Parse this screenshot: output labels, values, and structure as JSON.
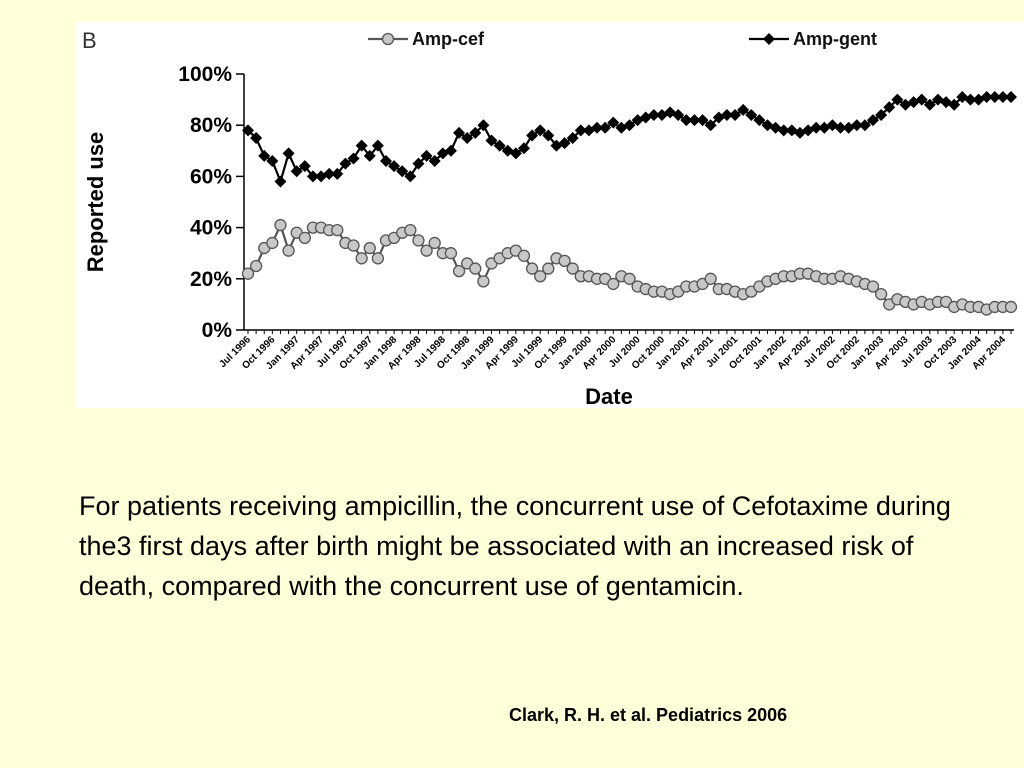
{
  "chart_data": {
    "type": "line",
    "panel_label": "B",
    "xlabel": "Date",
    "ylabel": "Reported use",
    "ylim": [
      0,
      100
    ],
    "yticks": [
      "0%",
      "20%",
      "40%",
      "60%",
      "80%",
      "100%"
    ],
    "ytick_values": [
      0,
      20,
      40,
      60,
      80,
      100
    ],
    "xtick_labels": [
      "Jul 1996",
      "Oct 1996",
      "Jan 1997",
      "Apr 1997",
      "Jul 1997",
      "Oct 1997",
      "Jan 1998",
      "Apr 1998",
      "Jul 1998",
      "Oct 1998",
      "Jan 1999",
      "Apr 1999",
      "Jul 1999",
      "Oct 1999",
      "Jan 2000",
      "Apr 2000",
      "Jul 2000",
      "Oct 2000",
      "Jan 2001",
      "Apr 2001",
      "Jul 2001",
      "Oct 2001",
      "Jan 2002",
      "Apr 2002",
      "Jul 2002",
      "Oct 2002",
      "Jan 2003",
      "Apr 2003",
      "Jul 2003",
      "Oct 2003",
      "Jan 2004",
      "Apr 2004"
    ],
    "x_start": "Jul 1996",
    "x_frequency": "monthly",
    "grid": false,
    "legend_position": "top",
    "series": [
      {
        "name": "Amp-cef",
        "color": "#555555",
        "marker": "circle",
        "marker_fill": "#c8c8c8",
        "values": [
          22,
          25,
          32,
          34,
          41,
          31,
          38,
          36,
          40,
          40,
          39,
          39,
          34,
          33,
          28,
          32,
          28,
          35,
          36,
          38,
          39,
          35,
          31,
          34,
          30,
          30,
          23,
          26,
          24,
          19,
          26,
          28,
          30,
          31,
          29,
          24,
          21,
          24,
          28,
          27,
          24,
          21,
          21,
          20,
          20,
          18,
          21,
          20,
          17,
          16,
          15,
          15,
          14,
          15,
          17,
          17,
          18,
          20,
          16,
          16,
          15,
          14,
          15,
          17,
          19,
          20,
          21,
          21,
          22,
          22,
          21,
          20,
          20,
          21,
          20,
          19,
          18,
          17,
          14,
          10,
          12,
          11,
          10,
          11,
          10,
          11,
          11,
          9,
          10,
          9,
          9,
          8,
          9,
          9,
          9
        ]
      },
      {
        "name": "Amp-gent",
        "color": "#000000",
        "marker": "diamond",
        "marker_fill": "#000000",
        "values": [
          78,
          75,
          68,
          66,
          58,
          69,
          62,
          64,
          60,
          60,
          61,
          61,
          65,
          67,
          72,
          68,
          72,
          66,
          64,
          62,
          60,
          65,
          68,
          66,
          69,
          70,
          77,
          75,
          77,
          80,
          74,
          72,
          70,
          69,
          71,
          76,
          78,
          76,
          72,
          73,
          75,
          78,
          78,
          79,
          79,
          81,
          79,
          80,
          82,
          83,
          84,
          84,
          85,
          84,
          82,
          82,
          82,
          80,
          83,
          84,
          84,
          86,
          84,
          82,
          80,
          79,
          78,
          78,
          77,
          78,
          79,
          79,
          80,
          79,
          79,
          80,
          80,
          82,
          84,
          87,
          90,
          88,
          89,
          90,
          88,
          90,
          89,
          88,
          91,
          90,
          90,
          91,
          91,
          91,
          91
        ]
      }
    ]
  },
  "caption": {
    "text": "For patients receiving ampicillin, the concurrent use of Cefotaxime during the3 first days after birth might be associated with an increased risk of death, compared with the concurrent use of gentamicin."
  },
  "citation": {
    "text": "Clark, R. H. et al. Pediatrics 2006"
  }
}
